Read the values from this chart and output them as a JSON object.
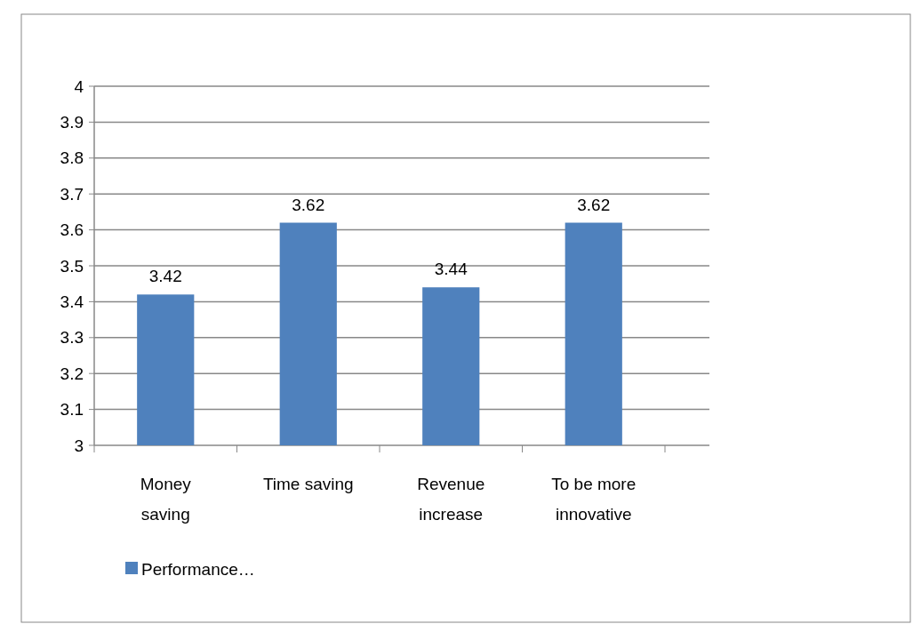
{
  "chart_data": {
    "type": "bar",
    "categories": [
      "Money saving",
      "Time saving",
      "Revenue increase",
      "To be more innovative"
    ],
    "series": [
      {
        "name": "Performance…",
        "color": "#4f81bd",
        "values": [
          3.42,
          3.62,
          3.44,
          3.62
        ]
      }
    ],
    "ylim": [
      3,
      4
    ],
    "yticks": [
      3,
      3.1,
      3.2,
      3.3,
      3.4,
      3.5,
      3.6,
      3.7,
      3.8,
      3.9,
      4
    ],
    "grid": "y",
    "data_labels": true,
    "legend": "bottom left"
  }
}
